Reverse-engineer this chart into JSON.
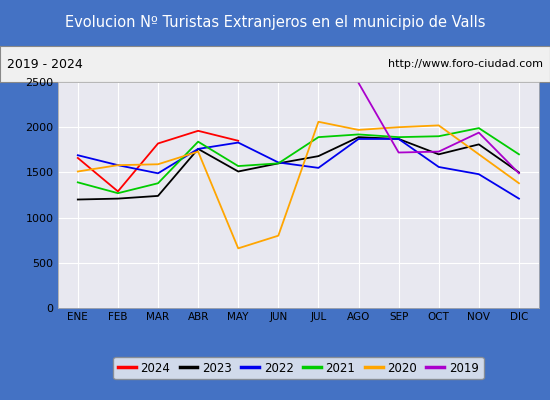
{
  "title": "Evolucion Nº Turistas Extranjeros en el municipio de Valls",
  "subtitle_left": "2019 - 2024",
  "subtitle_right": "http://www.foro-ciudad.com",
  "months": [
    "ENE",
    "FEB",
    "MAR",
    "ABR",
    "MAY",
    "JUN",
    "JUL",
    "AGO",
    "SEP",
    "OCT",
    "NOV",
    "DIC"
  ],
  "series_2024": {
    "color": "#ff0000",
    "xi": [
      0,
      1,
      2,
      3,
      4
    ],
    "y": [
      1660,
      1290,
      1820,
      1960,
      1850
    ]
  },
  "series_2023": {
    "color": "#000000",
    "xi": [
      0,
      1,
      2,
      3,
      4,
      5,
      6,
      7,
      8,
      9,
      10,
      11
    ],
    "y": [
      1200,
      1210,
      1240,
      1760,
      1510,
      1600,
      1680,
      1890,
      1870,
      1700,
      1810,
      1500
    ]
  },
  "series_2022": {
    "color": "#0000ee",
    "xi": [
      0,
      1,
      2,
      3,
      4,
      5,
      6,
      7,
      8,
      9,
      10,
      11
    ],
    "y": [
      1690,
      1580,
      1490,
      1760,
      1830,
      1610,
      1550,
      1870,
      1870,
      1560,
      1480,
      1210
    ]
  },
  "series_2021": {
    "color": "#00cc00",
    "xi": [
      0,
      1,
      2,
      3,
      4,
      5,
      6,
      7,
      8,
      9,
      10,
      11
    ],
    "y": [
      1390,
      1270,
      1380,
      1840,
      1570,
      1600,
      1890,
      1920,
      1890,
      1900,
      1990,
      1700
    ]
  },
  "series_2020": {
    "color": "#ffa500",
    "xi": [
      0,
      1,
      2,
      3,
      4,
      5,
      6,
      7,
      8,
      9,
      10,
      11
    ],
    "y": [
      1510,
      1580,
      1590,
      1730,
      660,
      800,
      2060,
      1970,
      2000,
      2020,
      1700,
      1380
    ]
  },
  "series_2019": {
    "color": "#aa00cc",
    "xi": [
      7,
      8,
      9,
      10,
      11
    ],
    "y": [
      2490,
      1720,
      1730,
      1940,
      1490
    ]
  },
  "ylim": [
    0,
    2500
  ],
  "yticks": [
    0,
    500,
    1000,
    1500,
    2000,
    2500
  ],
  "title_bg": "#4472c4",
  "title_color": "#ffffff",
  "subtitle_bg": "#f0f0f0",
  "subtitle_color": "#000000",
  "plot_bg": "#e8e8f0",
  "grid_color": "#ffffff",
  "outer_bg": "#4472c4",
  "legend_bg": "#f5f5f5"
}
